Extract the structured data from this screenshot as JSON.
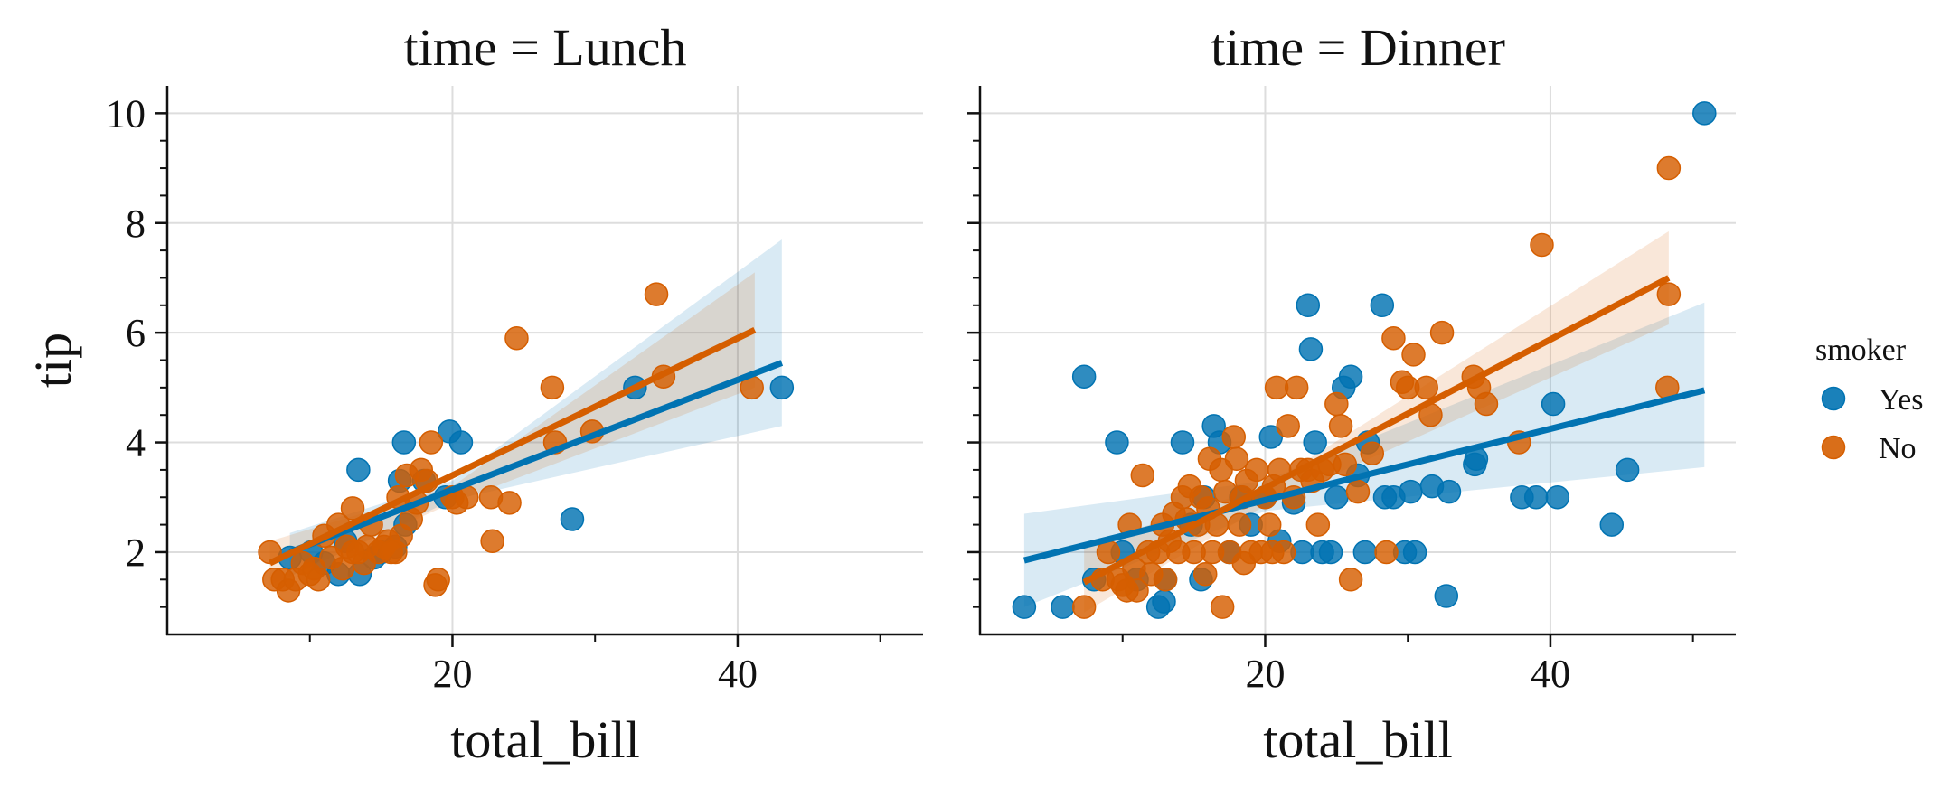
{
  "chart_data": {
    "type": "scatter",
    "panels": [
      {
        "title": "time = Lunch",
        "xlabel": "total_bill",
        "ylabel": "tip",
        "series": [
          {
            "name": "Yes",
            "points": [
              [
                8.6,
                1.9
              ],
              [
                10.1,
                2.0
              ],
              [
                11.0,
                1.8
              ],
              [
                12.5,
                2.2
              ],
              [
                13.4,
                3.5
              ],
              [
                13.5,
                1.6
              ],
              [
                15.0,
                2.0
              ],
              [
                16.0,
                2.1
              ],
              [
                16.3,
                3.3
              ],
              [
                16.6,
                4.0
              ],
              [
                18.0,
                3.3
              ],
              [
                19.5,
                3.0
              ],
              [
                19.8,
                4.2
              ],
              [
                20.6,
                4.0
              ],
              [
                28.4,
                2.6
              ],
              [
                32.8,
                5.0
              ],
              [
                43.1,
                5.0
              ],
              [
                16.7,
                2.5
              ],
              [
                14.5,
                1.9
              ],
              [
                12.0,
                1.6
              ]
            ],
            "fit": {
              "x": [
                8.6,
                43.1
              ],
              "y": [
                2.0,
                5.45
              ]
            },
            "ci": {
              "x": [
                8.6,
                20,
                43.1
              ],
              "upper": [
                2.35,
                3.3,
                7.7
              ],
              "lower": [
                1.55,
                2.95,
                4.3
              ]
            }
          },
          {
            "name": "No",
            "points": [
              [
                7.2,
                2.0
              ],
              [
                7.5,
                1.5
              ],
              [
                8.1,
                1.5
              ],
              [
                8.5,
                1.3
              ],
              [
                9.0,
                1.5
              ],
              [
                9.5,
                1.8
              ],
              [
                10.0,
                1.6
              ],
              [
                10.3,
                1.7
              ],
              [
                10.6,
                1.5
              ],
              [
                11.0,
                2.3
              ],
              [
                11.5,
                1.9
              ],
              [
                12.0,
                2.5
              ],
              [
                12.3,
                1.7
              ],
              [
                12.6,
                2.1
              ],
              [
                13.0,
                2.8
              ],
              [
                13.4,
                2.0
              ],
              [
                13.8,
                1.8
              ],
              [
                14.0,
                2.1
              ],
              [
                14.3,
                2.5
              ],
              [
                14.8,
                2.0
              ],
              [
                15.2,
                2.1
              ],
              [
                15.5,
                2.2
              ],
              [
                16.0,
                2.0
              ],
              [
                16.2,
                3.0
              ],
              [
                16.4,
                2.3
              ],
              [
                16.8,
                3.4
              ],
              [
                17.1,
                2.6
              ],
              [
                17.5,
                2.9
              ],
              [
                17.8,
                3.5
              ],
              [
                18.2,
                3.3
              ],
              [
                18.5,
                4.0
              ],
              [
                18.8,
                1.4
              ],
              [
                19.0,
                1.5
              ],
              [
                20.0,
                3.0
              ],
              [
                20.3,
                2.9
              ],
              [
                21.0,
                3.0
              ],
              [
                22.7,
                3.0
              ],
              [
                22.8,
                2.2
              ],
              [
                24.0,
                2.9
              ],
              [
                24.5,
                5.9
              ],
              [
                27.0,
                5.0
              ],
              [
                27.2,
                4.0
              ],
              [
                29.8,
                4.2
              ],
              [
                34.3,
                6.7
              ],
              [
                34.8,
                5.2
              ],
              [
                41.0,
                5.0
              ],
              [
                13.0,
                2.0
              ],
              [
                15.7,
                2.0
              ]
            ],
            "fit": {
              "x": [
                7.2,
                41.2
              ],
              "y": [
                1.8,
                6.05
              ]
            },
            "ci": {
              "x": [
                7.2,
                20,
                41.2
              ],
              "upper": [
                2.2,
                3.2,
                7.1
              ],
              "lower": [
                1.4,
                2.9,
                5.0
              ]
            }
          }
        ]
      },
      {
        "title": "time = Dinner",
        "xlabel": "total_bill",
        "ylabel": "",
        "series": [
          {
            "name": "Yes",
            "points": [
              [
                3.1,
                1.0
              ],
              [
                5.8,
                1.0
              ],
              [
                7.3,
                5.2
              ],
              [
                8.0,
                1.5
              ],
              [
                9.6,
                4.0
              ],
              [
                10.0,
                2.0
              ],
              [
                11.0,
                1.5
              ],
              [
                12.5,
                1.0
              ],
              [
                12.9,
                1.1
              ],
              [
                13.0,
                1.5
              ],
              [
                14.2,
                4.0
              ],
              [
                14.8,
                2.5
              ],
              [
                15.5,
                1.5
              ],
              [
                15.7,
                3.0
              ],
              [
                16.4,
                4.3
              ],
              [
                16.8,
                4.0
              ],
              [
                17.5,
                2.0
              ],
              [
                18.3,
                3.0
              ],
              [
                19.0,
                2.5
              ],
              [
                20.0,
                3.0
              ],
              [
                20.4,
                4.1
              ],
              [
                21.0,
                2.2
              ],
              [
                22.0,
                2.9
              ],
              [
                22.6,
                2.0
              ],
              [
                23.0,
                6.5
              ],
              [
                23.2,
                5.7
              ],
              [
                23.5,
                4.0
              ],
              [
                24.0,
                2.0
              ],
              [
                24.6,
                2.0
              ],
              [
                25.0,
                3.0
              ],
              [
                25.5,
                5.0
              ],
              [
                26.0,
                5.2
              ],
              [
                26.5,
                3.4
              ],
              [
                27.2,
                4.0
              ],
              [
                27.0,
                2.0
              ],
              [
                28.2,
                6.5
              ],
              [
                28.4,
                3.0
              ],
              [
                29.0,
                3.0
              ],
              [
                29.8,
                2.0
              ],
              [
                30.2,
                3.1
              ],
              [
                30.5,
                2.0
              ],
              [
                31.7,
                3.2
              ],
              [
                32.7,
                1.2
              ],
              [
                32.9,
                3.1
              ],
              [
                34.7,
                3.6
              ],
              [
                34.8,
                3.7
              ],
              [
                38.0,
                3.0
              ],
              [
                39.0,
                3.0
              ],
              [
                40.2,
                4.7
              ],
              [
                40.5,
                3.0
              ],
              [
                44.3,
                2.5
              ],
              [
                45.4,
                3.5
              ],
              [
                50.8,
                10.0
              ]
            ],
            "fit": {
              "x": [
                3.1,
                50.8
              ],
              "y": [
                1.85,
                4.95
              ]
            },
            "ci": {
              "x": [
                3.1,
                20,
                50.8
              ],
              "upper": [
                2.7,
                3.3,
                6.55
              ],
              "lower": [
                1.0,
                2.75,
                3.55
              ]
            }
          },
          {
            "name": "No",
            "points": [
              [
                7.3,
                1.0
              ],
              [
                8.6,
                1.5
              ],
              [
                9.0,
                2.0
              ],
              [
                9.7,
                1.5
              ],
              [
                10.0,
                1.4
              ],
              [
                10.3,
                1.3
              ],
              [
                10.5,
                2.5
              ],
              [
                10.8,
                1.7
              ],
              [
                11.0,
                1.3
              ],
              [
                11.4,
                3.4
              ],
              [
                11.8,
                2.0
              ],
              [
                12.0,
                1.6
              ],
              [
                12.5,
                2.0
              ],
              [
                12.8,
                2.5
              ],
              [
                13.0,
                1.5
              ],
              [
                13.3,
                2.2
              ],
              [
                13.6,
                2.7
              ],
              [
                13.9,
                2.0
              ],
              [
                14.2,
                3.0
              ],
              [
                14.5,
                2.6
              ],
              [
                14.7,
                3.2
              ],
              [
                15.0,
                2.0
              ],
              [
                15.3,
                2.5
              ],
              [
                15.5,
                3.0
              ],
              [
                15.8,
                1.6
              ],
              [
                16.1,
                3.7
              ],
              [
                16.3,
                2.0
              ],
              [
                16.6,
                2.5
              ],
              [
                16.9,
                3.5
              ],
              [
                17.0,
                1.0
              ],
              [
                17.2,
                3.1
              ],
              [
                17.5,
                2.0
              ],
              [
                17.8,
                4.1
              ],
              [
                18.0,
                3.7
              ],
              [
                18.2,
                2.5
              ],
              [
                18.4,
                3.0
              ],
              [
                18.7,
                3.3
              ],
              [
                19.0,
                2.0
              ],
              [
                19.4,
                3.5
              ],
              [
                19.7,
                2.0
              ],
              [
                20.0,
                3.0
              ],
              [
                20.3,
                2.5
              ],
              [
                20.6,
                3.2
              ],
              [
                20.8,
                5.0
              ],
              [
                21.0,
                3.5
              ],
              [
                21.3,
                2.0
              ],
              [
                21.6,
                4.3
              ],
              [
                22.0,
                3.0
              ],
              [
                22.2,
                5.0
              ],
              [
                22.5,
                3.5
              ],
              [
                23.0,
                3.5
              ],
              [
                23.3,
                3.3
              ],
              [
                23.7,
                2.5
              ],
              [
                24.0,
                3.5
              ],
              [
                24.5,
                3.6
              ],
              [
                25.0,
                4.7
              ],
              [
                25.3,
                4.3
              ],
              [
                25.6,
                3.6
              ],
              [
                26.0,
                1.5
              ],
              [
                26.5,
                3.1
              ],
              [
                27.5,
                3.8
              ],
              [
                28.5,
                2.0
              ],
              [
                29.0,
                5.9
              ],
              [
                29.6,
                5.1
              ],
              [
                30.0,
                5.0
              ],
              [
                30.4,
                5.6
              ],
              [
                31.3,
                5.0
              ],
              [
                31.6,
                4.5
              ],
              [
                32.4,
                6.0
              ],
              [
                34.6,
                5.2
              ],
              [
                35.0,
                5.0
              ],
              [
                35.5,
                4.7
              ],
              [
                37.8,
                4.0
              ],
              [
                39.4,
                7.6
              ],
              [
                48.2,
                5.0
              ],
              [
                48.3,
                6.7
              ],
              [
                48.3,
                9.0
              ],
              [
                20.5,
                2.0
              ],
              [
                18.5,
                1.8
              ],
              [
                16.0,
                2.8
              ]
            ],
            "fit": {
              "x": [
                7.3,
                48.3
              ],
              "y": [
                1.45,
                7.0
              ]
            },
            "ci": {
              "x": [
                7.3,
                20,
                48.3
              ],
              "upper": [
                2.1,
                3.2,
                7.85
              ],
              "lower": [
                0.9,
                2.85,
                6.15
              ]
            }
          }
        ]
      }
    ],
    "xlim": [
      0,
      53
    ],
    "ylim": [
      0.5,
      10.5
    ],
    "xticks": [
      20,
      40
    ],
    "yticks": [
      2,
      4,
      6,
      8,
      10
    ],
    "grid": true,
    "colors": {
      "Yes": "#0173b2",
      "No": "#d55e00"
    },
    "legend": {
      "title": "smoker",
      "placement": "right",
      "entries": [
        "Yes",
        "No"
      ]
    }
  }
}
